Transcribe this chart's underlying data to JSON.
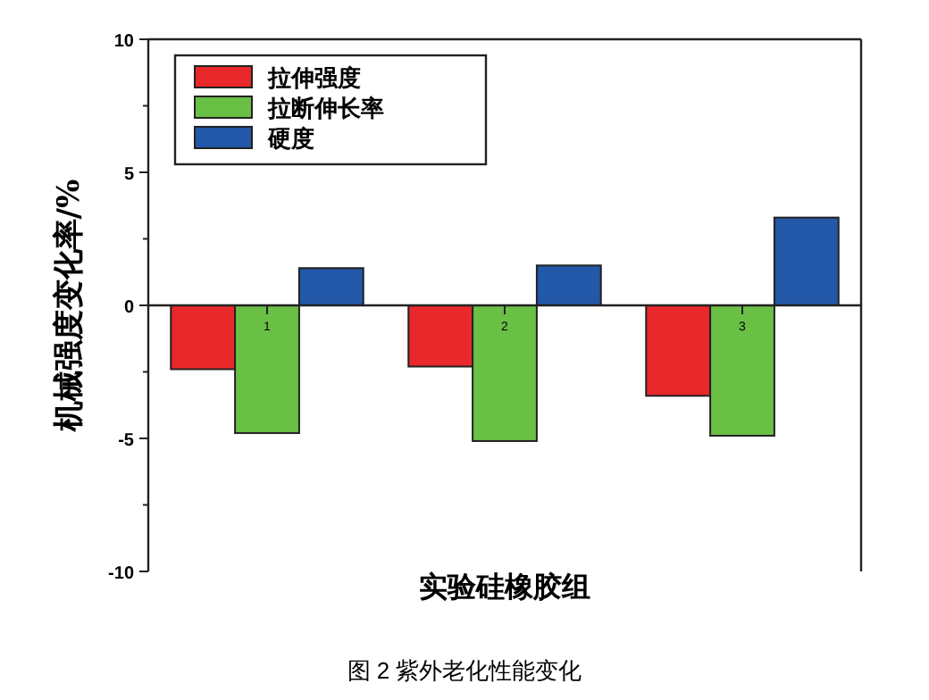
{
  "chart_data": {
    "type": "bar",
    "ylabel": "机械强度变化率/%",
    "xlabel": "实验硅橡胶组",
    "categories": [
      "1",
      "2",
      "3"
    ],
    "series": [
      {
        "name": "拉伸强度",
        "color": "#e8282a",
        "values": [
          -2.4,
          -2.3,
          -3.4
        ]
      },
      {
        "name": "拉断伸长率",
        "color": "#6abf45",
        "values": [
          -4.8,
          -5.1,
          -4.9
        ]
      },
      {
        "name": "硬度",
        "color": "#2357a8",
        "values": [
          1.4,
          1.5,
          3.3
        ]
      }
    ],
    "ylim": [
      -10,
      10
    ],
    "yticks": [
      -10,
      {
        "value": -7.5,
        "label": null
      },
      -5,
      {
        "value": -2.5,
        "label": null
      },
      0,
      {
        "value": 2.5,
        "label": null
      },
      5,
      {
        "value": 7.5,
        "label": null
      },
      10
    ],
    "grid": false,
    "legend": "top left",
    "annotations": [
      "图 2 紫外老化性能变化"
    ]
  }
}
